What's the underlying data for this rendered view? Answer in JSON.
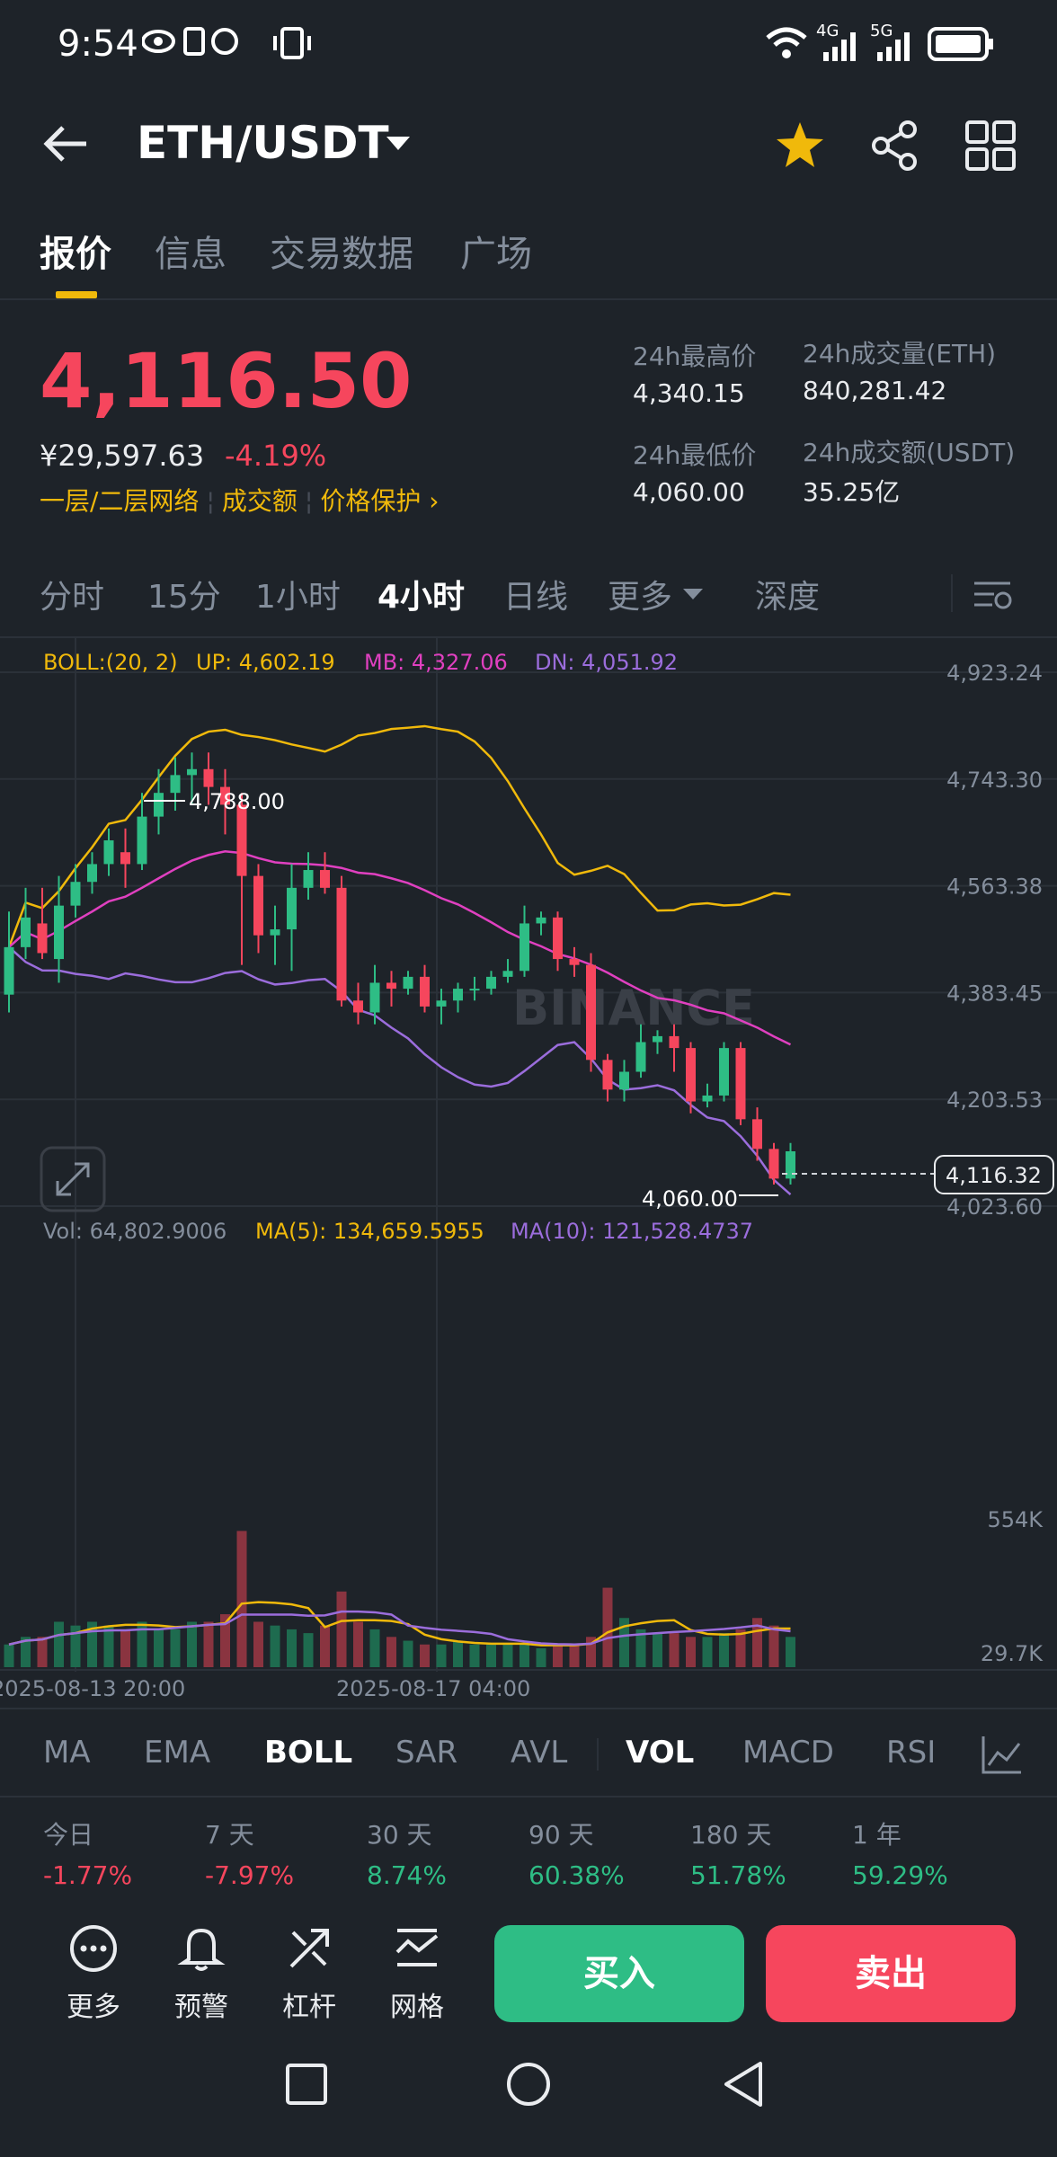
{
  "status_bar": {
    "time": "9:54",
    "net1": "4G",
    "net2": "5G"
  },
  "header": {
    "pair": "ETH/USDT"
  },
  "tabs": [
    "报价",
    "信息",
    "交易数据",
    "广场"
  ],
  "ticker": {
    "price": "4,116.50",
    "cny": "¥29,597.63",
    "change": "-4.19%",
    "tag1": "一层/二层网络",
    "tag2": "成交额",
    "tag3": "价格保护 ›",
    "high_label": "24h最高价",
    "high": "4,340.15",
    "low_label": "24h最低价",
    "low": "4,060.00",
    "vol_label": "24h成交量(ETH)",
    "vol": "840,281.42",
    "amt_label": "24h成交额(USDT)",
    "amt": "35.25亿"
  },
  "intervals": [
    "分时",
    "15分",
    "1小时",
    "4小时",
    "日线",
    "更多",
    "深度"
  ],
  "boll_legend": {
    "main": "BOLL:(20, 2)",
    "up": "UP: 4,602.19",
    "mb": "MB: 4,327.06",
    "dn": "DN: 4,051.92"
  },
  "price_axis": [
    "4,923.24",
    "4,743.30",
    "4,563.38",
    "4,383.45",
    "4,203.53",
    "4,023.60"
  ],
  "annotations": {
    "high": "4,788.00",
    "low": "4,060.00",
    "last": "4,116.32"
  },
  "watermark": "BINANCE",
  "vol_legend": {
    "vol": "Vol: 64,802.9006",
    "ma5": "MA(5): 134,659.5955",
    "ma10": "MA(10): 121,528.4737"
  },
  "vol_axis": [
    "554K",
    "29.7K"
  ],
  "time_axis": [
    "2025-08-13 20:00",
    "2025-08-17 04:00"
  ],
  "indicators": [
    "MA",
    "EMA",
    "BOLL",
    "SAR",
    "AVL",
    "VOL",
    "MACD",
    "RSI"
  ],
  "performance": [
    {
      "label": "今日",
      "value": "-1.77%",
      "color": "#f6465d"
    },
    {
      "label": "7 天",
      "value": "-7.97%",
      "color": "#f6465d"
    },
    {
      "label": "30 天",
      "value": "8.74%",
      "color": "#2ebd85"
    },
    {
      "label": "90 天",
      "value": "60.38%",
      "color": "#2ebd85"
    },
    {
      "label": "180 天",
      "value": "51.78%",
      "color": "#2ebd85"
    },
    {
      "label": "1 年",
      "value": "59.29%",
      "color": "#2ebd85"
    }
  ],
  "bottom": {
    "more": "更多",
    "alert": "预警",
    "leverage": "杠杆",
    "grid": "网格",
    "buy": "买入",
    "sell": "卖出"
  },
  "colors": {
    "up": "#2ebd85",
    "down": "#f6465d",
    "accent": "#f0b90b",
    "boll_up": "#f0b90b",
    "boll_mb": "#e040c0",
    "boll_dn": "#9b6ddc"
  },
  "chart_data": {
    "type": "candlestick",
    "ylim": [
      4023.6,
      4923.24
    ],
    "candles": [
      [
        4380,
        4460,
        4350,
        4520
      ],
      [
        4460,
        4510,
        4440,
        4560
      ],
      [
        4500,
        4450,
        4440,
        4560
      ],
      [
        4440,
        4530,
        4400,
        4580
      ],
      [
        4530,
        4570,
        4510,
        4600
      ],
      [
        4570,
        4600,
        4550,
        4620
      ],
      [
        4600,
        4640,
        4580,
        4660
      ],
      [
        4620,
        4600,
        4560,
        4660
      ],
      [
        4600,
        4680,
        4590,
        4720
      ],
      [
        4680,
        4720,
        4650,
        4760
      ],
      [
        4720,
        4750,
        4690,
        4780
      ],
      [
        4750,
        4760,
        4700,
        4788
      ],
      [
        4760,
        4730,
        4700,
        4788
      ],
      [
        4730,
        4700,
        4650,
        4760
      ],
      [
        4700,
        4580,
        4430,
        4720
      ],
      [
        4580,
        4480,
        4450,
        4600
      ],
      [
        4480,
        4490,
        4430,
        4530
      ],
      [
        4490,
        4560,
        4420,
        4600
      ],
      [
        4560,
        4590,
        4540,
        4620
      ],
      [
        4590,
        4560,
        4550,
        4620
      ],
      [
        4560,
        4370,
        4360,
        4580
      ],
      [
        4370,
        4350,
        4330,
        4400
      ],
      [
        4350,
        4400,
        4330,
        4430
      ],
      [
        4400,
        4390,
        4360,
        4420
      ],
      [
        4390,
        4410,
        4380,
        4420
      ],
      [
        4410,
        4360,
        4350,
        4430
      ],
      [
        4360,
        4370,
        4330,
        4390
      ],
      [
        4370,
        4390,
        4350,
        4400
      ],
      [
        4390,
        4390,
        4370,
        4410
      ],
      [
        4390,
        4410,
        4380,
        4420
      ],
      [
        4410,
        4420,
        4400,
        4440
      ],
      [
        4420,
        4500,
        4410,
        4530
      ],
      [
        4500,
        4510,
        4480,
        4520
      ],
      [
        4510,
        4440,
        4420,
        4520
      ],
      [
        4440,
        4430,
        4410,
        4460
      ],
      [
        4430,
        4270,
        4250,
        4450
      ],
      [
        4270,
        4220,
        4200,
        4280
      ],
      [
        4220,
        4250,
        4200,
        4270
      ],
      [
        4250,
        4300,
        4240,
        4330
      ],
      [
        4300,
        4310,
        4280,
        4320
      ],
      [
        4310,
        4290,
        4250,
        4330
      ],
      [
        4290,
        4200,
        4180,
        4300
      ],
      [
        4200,
        4210,
        4190,
        4230
      ],
      [
        4210,
        4290,
        4200,
        4300
      ],
      [
        4290,
        4170,
        4160,
        4300
      ],
      [
        4170,
        4120,
        4100,
        4190
      ],
      [
        4120,
        4070,
        4060,
        4130
      ],
      [
        4070,
        4116,
        4060,
        4130
      ]
    ],
    "volumes": [
      60,
      80,
      80,
      120,
      110,
      120,
      110,
      100,
      120,
      100,
      100,
      120,
      120,
      140,
      360,
      120,
      110,
      100,
      90,
      110,
      200,
      120,
      100,
      80,
      70,
      60,
      60,
      70,
      60,
      60,
      60,
      60,
      50,
      60,
      60,
      80,
      210,
      130,
      100,
      90,
      90,
      80,
      80,
      90,
      100,
      130,
      110,
      80
    ]
  }
}
